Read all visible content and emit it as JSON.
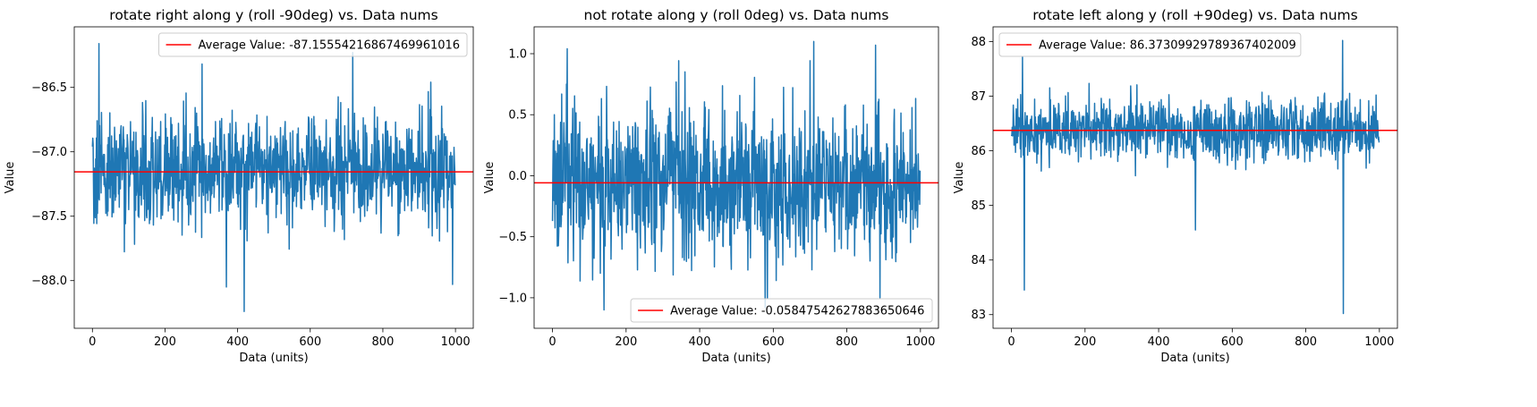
{
  "chart_data": [
    {
      "type": "line",
      "title": "rotate right along y (roll -90deg) vs. Data nums",
      "xlabel": "Data (units)",
      "ylabel": "Value",
      "xlim": [
        -50,
        1049
      ],
      "ylim": [
        -88.37,
        -86.03
      ],
      "xticks": [
        0,
        200,
        400,
        600,
        800,
        1000
      ],
      "yticks": [
        -88.0,
        -87.5,
        -87.0,
        -86.5
      ],
      "ytick_labels": [
        "−88.0",
        "−87.5",
        "−87.0",
        "−86.5"
      ],
      "n_points": 1000,
      "series_mean": -87.155,
      "series_spread": 0.22,
      "average_line": {
        "value": -87.1555421686747,
        "color": "#ff0000"
      },
      "legend": {
        "label": "Average Value: -87.15554216867469961016",
        "placement": "upper right"
      },
      "extremes": [
        {
          "x": 18,
          "y": -86.16
        },
        {
          "x": 418,
          "y": -88.24
        },
        {
          "x": 717,
          "y": -86.23
        },
        {
          "x": 369,
          "y": -88.05
        },
        {
          "x": 992,
          "y": -88.03
        }
      ],
      "series_color": "#1f77b4",
      "grid": false
    },
    {
      "type": "line",
      "title": "not rotate along y (roll 0deg) vs. Data nums",
      "xlabel": "Data (units)",
      "ylabel": "Value",
      "xlim": [
        -50,
        1049
      ],
      "ylim": [
        -1.25,
        1.22
      ],
      "xticks": [
        0,
        200,
        400,
        600,
        800,
        1000
      ],
      "yticks": [
        -1.0,
        -0.5,
        0.0,
        0.5,
        1.0
      ],
      "ytick_labels": [
        "−1.0",
        "−0.5",
        "0.0",
        "0.5",
        "1.0"
      ],
      "n_points": 1000,
      "series_mean": -0.058,
      "series_spread": 0.32,
      "average_line": {
        "value": -0.058475426278836506,
        "color": "#ff0000"
      },
      "legend": {
        "label": "Average Value: -0.05847542627883650646",
        "placement": "lower right"
      },
      "extremes": [
        {
          "x": 710,
          "y": 1.1
        },
        {
          "x": 40,
          "y": 1.04
        },
        {
          "x": 578,
          "y": -1.08
        },
        {
          "x": 140,
          "y": -1.1
        },
        {
          "x": 890,
          "y": -1.0
        }
      ],
      "series_color": "#1f77b4",
      "grid": false
    },
    {
      "type": "line",
      "title": "rotate left along y (roll +90deg) vs. Data nums",
      "xlabel": "Data (units)",
      "ylabel": "Value",
      "xlim": [
        -50,
        1049
      ],
      "ylim": [
        82.75,
        88.27
      ],
      "xticks": [
        0,
        200,
        400,
        600,
        800,
        1000
      ],
      "yticks": [
        83,
        84,
        85,
        86,
        87,
        88
      ],
      "ytick_labels": [
        "83",
        "84",
        "85",
        "86",
        "87",
        "88"
      ],
      "n_points": 1000,
      "series_mean": 86.37,
      "series_spread": 0.28,
      "average_line": {
        "value": 86.37309929789367,
        "color": "#ff0000"
      },
      "legend": {
        "label": "Average Value: 86.37309929789367402009",
        "placement": "upper left"
      },
      "extremes": [
        {
          "x": 35,
          "y": 83.45
        },
        {
          "x": 900,
          "y": 88.02
        },
        {
          "x": 902,
          "y": 83.02
        },
        {
          "x": 500,
          "y": 84.55
        },
        {
          "x": 30,
          "y": 87.72
        }
      ],
      "series_color": "#1f77b4",
      "grid": false
    }
  ]
}
